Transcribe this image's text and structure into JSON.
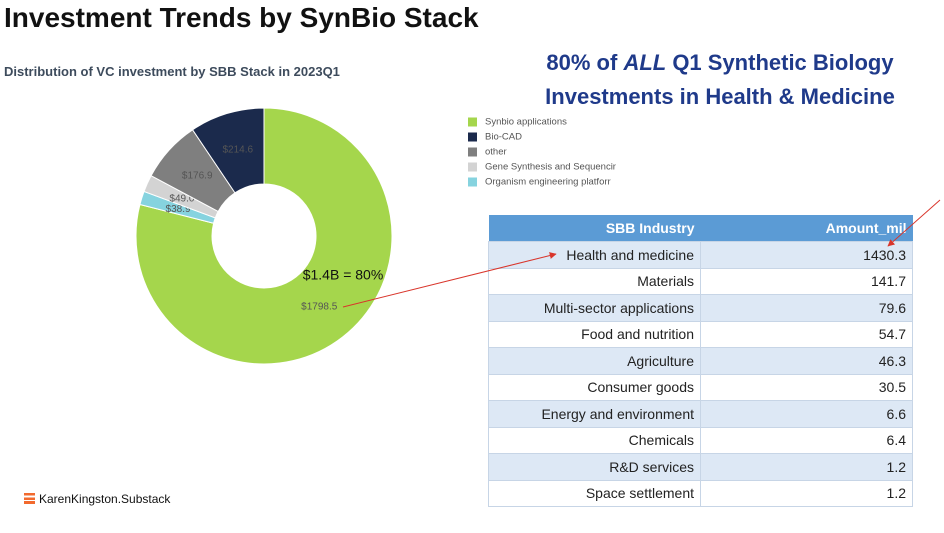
{
  "header": {
    "title": "Investment Trends by SynBio Stack"
  },
  "callout": {
    "line1": [
      "80% of ",
      "ALL",
      " Q1 Synthetic Biology"
    ],
    "line2": "Investments in Health & Medicine"
  },
  "chart_data": {
    "type": "donut",
    "title": "Distribution of VC investment by SBB Stack in 2023Q1",
    "categories": [
      "Synbio applications",
      "Bio-CAD",
      "other",
      "Gene Synthesis and Sequencir",
      "Organism engineering platforr"
    ],
    "values": [
      1798.5,
      214.6,
      176.9,
      49.0,
      38.9
    ],
    "value_labels": [
      "$1798.5",
      "$214.6",
      "$176.9",
      "$49.0",
      "$38.9"
    ],
    "colors": [
      "#a5d64c",
      "#1b2a4c",
      "#7f7f7f",
      "#d3d3d3",
      "#86d3df"
    ],
    "annotation": "$1.4B = 80%"
  },
  "table": {
    "header": [
      "SBB Industry",
      "Amount_mil"
    ],
    "rows": [
      [
        "Health and medicine",
        "1430.3"
      ],
      [
        "Materials",
        "141.7"
      ],
      [
        "Multi-sector applications",
        "79.6"
      ],
      [
        "Food and nutrition",
        "54.7"
      ],
      [
        "Agriculture",
        "46.3"
      ],
      [
        "Consumer goods",
        "30.5"
      ],
      [
        "Energy and environment",
        "6.6"
      ],
      [
        "Chemicals",
        "6.4"
      ],
      [
        "R&D services",
        "1.2"
      ],
      [
        "Space settlement",
        "1.2"
      ]
    ]
  },
  "footer": {
    "brand": "KarenKingston.Substack"
  }
}
